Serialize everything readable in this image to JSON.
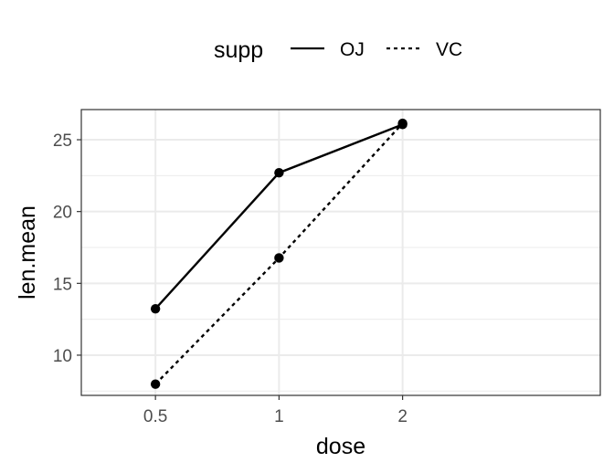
{
  "chart_data": {
    "type": "line",
    "title": "",
    "xlabel": "dose",
    "ylabel": "len.mean",
    "categories": [
      "0.5",
      "1",
      "2"
    ],
    "yticks": [
      10,
      15,
      20,
      25
    ],
    "ylim": [
      7.2,
      27.1
    ],
    "grid": true,
    "legend": {
      "title": "supp",
      "position": "top"
    },
    "series": [
      {
        "name": "OJ",
        "linetype": "solid",
        "values": [
          13.23,
          22.7,
          26.06
        ]
      },
      {
        "name": "VC",
        "linetype": "dotted",
        "values": [
          7.98,
          16.77,
          26.14
        ]
      }
    ],
    "colors": {
      "line": "#000000",
      "grid": "#ebebeb",
      "panel_border": "#333333",
      "tick_text": "#4d4d4d"
    }
  }
}
